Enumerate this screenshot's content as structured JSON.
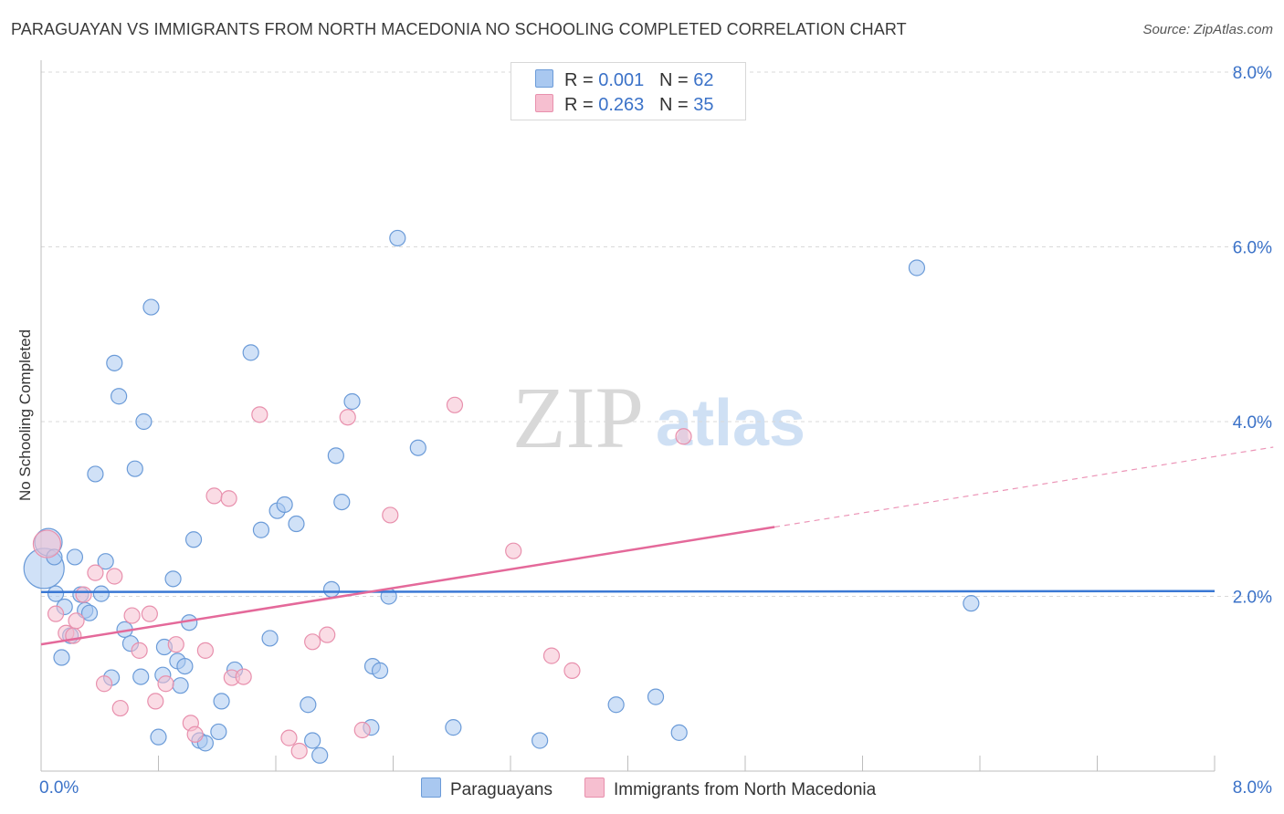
{
  "title": "PARAGUAYAN VS IMMIGRANTS FROM NORTH MACEDONIA NO SCHOOLING COMPLETED CORRELATION CHART",
  "source": "Source: ZipAtlas.com",
  "watermark": {
    "zip": "ZIP",
    "atlas": "atlas"
  },
  "colors": {
    "blue_fill": "#a9c8f0",
    "blue_stroke": "#6b9bd8",
    "blue_line": "#3a78d4",
    "pink_fill": "#f6bfd0",
    "pink_stroke": "#e890ad",
    "pink_line": "#e4699a",
    "axis_text": "#3b72c8"
  },
  "legend": {
    "rows": [
      {
        "r_label": "R = ",
        "r_value": "0.001",
        "n_label": "N = ",
        "n_value": "62"
      },
      {
        "r_label": "R = ",
        "r_value": "0.263",
        "n_label": "N = ",
        "n_value": "35"
      }
    ]
  },
  "bottom_legend": {
    "series1": "Paraguayans",
    "series2": "Immigrants from North Macedonia"
  },
  "chart_data": {
    "type": "scatter",
    "title": "PARAGUAYAN VS IMMIGRANTS FROM NORTH MACEDONIA NO SCHOOLING COMPLETED CORRELATION CHART",
    "xlabel": "",
    "ylabel": "No Schooling Completed",
    "xlim": [
      0,
      8
    ],
    "ylim": [
      0,
      8
    ],
    "x_tick_labels": [
      {
        "value": 0,
        "label": "0.0%"
      },
      {
        "value": 8,
        "label": "8.0%"
      }
    ],
    "y_tick_labels": [
      {
        "value": 2,
        "label": "2.0%"
      },
      {
        "value": 4,
        "label": "4.0%"
      },
      {
        "value": 6,
        "label": "6.0%"
      },
      {
        "value": 8,
        "label": "8.0%"
      }
    ],
    "x_minor_ticks": [
      0.8,
      1.6,
      2.4,
      3.2,
      4.0,
      4.8,
      5.6,
      6.4,
      7.2,
      8.0
    ],
    "series": [
      {
        "name": "Paraguayans",
        "color": "#a9c8f0",
        "R": 0.001,
        "N": 62,
        "trend": {
          "x0": 0,
          "y0": 2.05,
          "x1": 8,
          "y1": 2.06,
          "dashed_from": null
        },
        "points": [
          [
            0.02,
            2.32,
            3
          ],
          [
            0.05,
            2.62,
            2
          ],
          [
            0.09,
            2.45,
            1
          ],
          [
            0.1,
            2.03,
            1
          ],
          [
            0.14,
            1.3,
            1
          ],
          [
            0.16,
            1.88,
            1
          ],
          [
            0.2,
            1.55,
            1
          ],
          [
            0.23,
            2.45,
            1
          ],
          [
            0.27,
            2.02,
            1
          ],
          [
            0.3,
            1.84,
            1
          ],
          [
            0.33,
            1.81,
            1
          ],
          [
            0.37,
            3.4,
            1
          ],
          [
            0.41,
            2.03,
            1
          ],
          [
            0.44,
            2.4,
            1
          ],
          [
            0.48,
            1.07,
            1
          ],
          [
            0.5,
            4.67,
            1
          ],
          [
            0.53,
            4.29,
            1
          ],
          [
            0.57,
            1.62,
            1
          ],
          [
            0.61,
            1.46,
            1
          ],
          [
            0.64,
            3.46,
            1
          ],
          [
            0.68,
            1.08,
            1
          ],
          [
            0.7,
            4.0,
            1
          ],
          [
            0.75,
            5.31,
            1
          ],
          [
            0.8,
            0.39,
            1
          ],
          [
            0.83,
            1.1,
            1
          ],
          [
            0.84,
            1.42,
            1
          ],
          [
            0.9,
            2.2,
            1
          ],
          [
            0.93,
            1.26,
            1
          ],
          [
            0.95,
            0.98,
            1
          ],
          [
            0.98,
            1.2,
            1
          ],
          [
            1.01,
            1.7,
            1
          ],
          [
            1.04,
            2.65,
            1
          ],
          [
            1.08,
            0.35,
            1
          ],
          [
            1.12,
            0.32,
            1
          ],
          [
            1.21,
            0.45,
            1
          ],
          [
            1.23,
            0.8,
            1
          ],
          [
            1.32,
            1.16,
            1
          ],
          [
            1.43,
            4.79,
            1
          ],
          [
            1.5,
            2.76,
            1
          ],
          [
            1.56,
            1.52,
            1
          ],
          [
            1.61,
            2.98,
            1
          ],
          [
            1.66,
            3.05,
            1
          ],
          [
            1.74,
            2.83,
            1
          ],
          [
            1.82,
            0.76,
            1
          ],
          [
            1.85,
            0.35,
            1
          ],
          [
            1.9,
            0.18,
            1
          ],
          [
            1.98,
            2.08,
            1
          ],
          [
            2.01,
            3.61,
            1
          ],
          [
            2.05,
            3.08,
            1
          ],
          [
            2.12,
            4.23,
            1
          ],
          [
            2.25,
            0.5,
            1
          ],
          [
            2.26,
            1.2,
            1
          ],
          [
            2.31,
            1.15,
            1
          ],
          [
            2.37,
            2.0,
            1
          ],
          [
            2.43,
            6.1,
            1
          ],
          [
            2.57,
            3.7,
            1
          ],
          [
            2.81,
            0.5,
            1
          ],
          [
            3.4,
            0.35,
            1
          ],
          [
            3.92,
            0.76,
            1
          ],
          [
            4.19,
            0.85,
            1
          ],
          [
            4.35,
            0.44,
            1
          ],
          [
            5.97,
            5.76,
            1
          ],
          [
            6.34,
            1.92,
            1
          ]
        ]
      },
      {
        "name": "Immigrants from North Macedonia",
        "color": "#f6bfd0",
        "R": 0.263,
        "N": 35,
        "trend": {
          "x0": 0,
          "y0": 1.45,
          "x1": 8,
          "y1": 3.6,
          "dashed_from": 5.0
        },
        "points": [
          [
            0.04,
            2.6,
            2
          ],
          [
            0.1,
            1.8,
            1
          ],
          [
            0.17,
            1.58,
            1
          ],
          [
            0.22,
            1.55,
            1
          ],
          [
            0.24,
            1.72,
            1
          ],
          [
            0.29,
            2.02,
            1
          ],
          [
            0.37,
            2.27,
            1
          ],
          [
            0.43,
            1.0,
            1
          ],
          [
            0.5,
            2.23,
            1
          ],
          [
            0.54,
            0.72,
            1
          ],
          [
            0.62,
            1.78,
            1
          ],
          [
            0.67,
            1.38,
            1
          ],
          [
            0.74,
            1.8,
            1
          ],
          [
            0.78,
            0.8,
            1
          ],
          [
            0.85,
            1.0,
            1
          ],
          [
            0.92,
            1.45,
            1
          ],
          [
            1.02,
            0.55,
            1
          ],
          [
            1.05,
            0.42,
            1
          ],
          [
            1.12,
            1.38,
            1
          ],
          [
            1.18,
            3.15,
            1
          ],
          [
            1.28,
            3.12,
            1
          ],
          [
            1.3,
            1.07,
            1
          ],
          [
            1.38,
            1.08,
            1
          ],
          [
            1.49,
            4.08,
            1
          ],
          [
            1.69,
            0.38,
            1
          ],
          [
            1.76,
            0.23,
            1
          ],
          [
            1.85,
            1.48,
            1
          ],
          [
            1.95,
            1.56,
            1
          ],
          [
            2.09,
            4.05,
            1
          ],
          [
            2.19,
            0.47,
            1
          ],
          [
            2.38,
            2.93,
            1
          ],
          [
            2.82,
            4.19,
            1
          ],
          [
            3.22,
            2.52,
            1
          ],
          [
            3.48,
            1.32,
            1
          ],
          [
            3.62,
            1.15,
            1
          ],
          [
            4.38,
            3.83,
            1
          ]
        ]
      }
    ]
  }
}
